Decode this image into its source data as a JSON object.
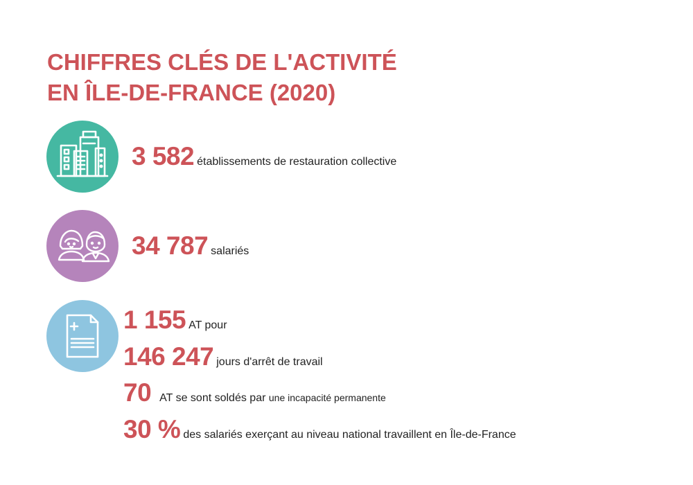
{
  "title": {
    "line1": "CHIFFRES CLÉS DE L'ACTIVITÉ",
    "line2": "EN ÎLE-DE-FRANCE (2020)"
  },
  "colors": {
    "accent": "#cd5358",
    "green": "#45b8a2",
    "purple": "#b584bb",
    "blue": "#8ec5e0"
  },
  "icons": {
    "buildings": "buildings-icon",
    "people": "people-icon",
    "document": "document-icon"
  },
  "stats": {
    "establishments": {
      "number": "3 582",
      "text": "établissements de restauration collective"
    },
    "employees": {
      "number": "34 787",
      "text": "salariés"
    },
    "accidents": {
      "number": "1 155",
      "text": "AT pour"
    },
    "days": {
      "number": "146 247",
      "text": "jours d'arrêt de travail"
    },
    "permanent": {
      "number": "70",
      "text_a": "AT se sont soldés par",
      "text_b": "une incapacité permanente"
    },
    "share": {
      "number": "30 %",
      "text": "des salariés exerçant au niveau national travaillent en Île-de-France"
    }
  }
}
